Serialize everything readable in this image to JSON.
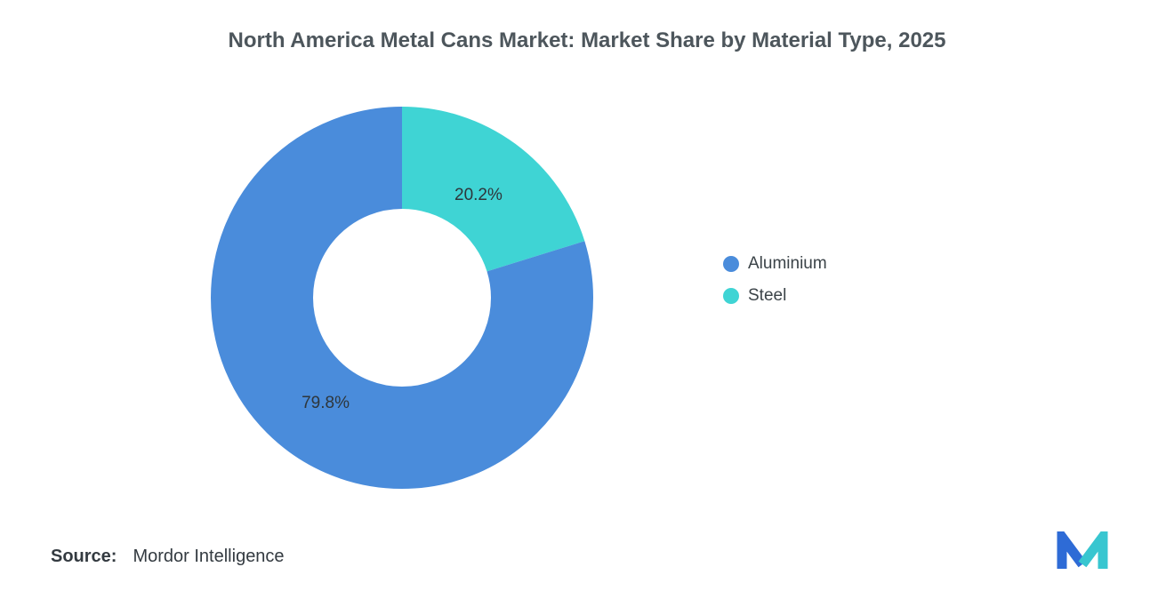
{
  "title": "North America Metal Cans Market: Market Share by Material Type, 2025",
  "legend": [
    {
      "label": "Aluminium",
      "color": "#4a8cdb"
    },
    {
      "label": "Steel",
      "color": "#3fd4d4"
    }
  ],
  "source": {
    "label": "Source:",
    "value": "Mordor Intelligence"
  },
  "colors": {
    "title_text": "#4d565c",
    "slice_label_text": "#2e363b",
    "aluminium": "#4a8cdb",
    "steel": "#3fd4d4",
    "logo_blue": "#2e6bd6",
    "logo_teal": "#38c6d0"
  },
  "chart_data": {
    "type": "pie",
    "subtype": "donut",
    "title": "North America Metal Cans Market: Market Share by Material Type, 2025",
    "categories": [
      "Aluminium",
      "Steel"
    ],
    "values": [
      79.8,
      20.2
    ],
    "labels": [
      "79.8%",
      "20.2%"
    ],
    "colors": [
      "#4a8cdb",
      "#3fd4d4"
    ],
    "start_angle": "top",
    "direction": "clockwise (Steel first from 12 o'clock)",
    "inner_radius_ratio": 0.465,
    "legend_position": "right"
  }
}
